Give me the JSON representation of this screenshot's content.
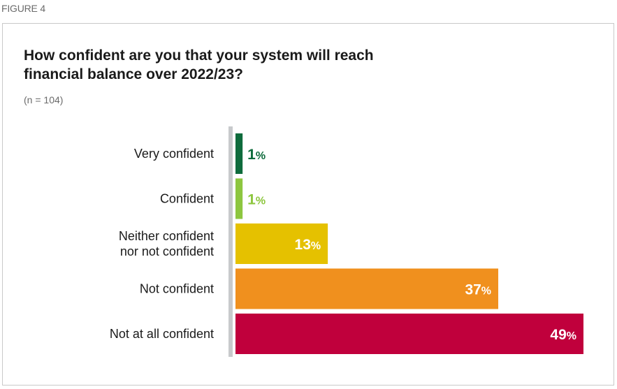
{
  "figure_label": "FIGURE 4",
  "chart_data": {
    "type": "bar",
    "orientation": "horizontal",
    "title": "How confident are you that your system will reach financial balance over 2022/23?",
    "subtitle": "(n = 104)",
    "xlabel": "",
    "ylabel": "",
    "xlim": [
      0,
      49
    ],
    "grid": false,
    "unit": "%",
    "categories": [
      [
        "Very confident"
      ],
      [
        "Confident"
      ],
      [
        "Neither confident",
        "nor not confident"
      ],
      [
        "Not confident"
      ],
      [
        "Not at all confident"
      ]
    ],
    "values": [
      1,
      1,
      13,
      37,
      49
    ],
    "colors": [
      "#0e6b3c",
      "#8dc63f",
      "#e5c100",
      "#f0901e",
      "#c0003c"
    ],
    "label_colors": [
      "#0e6b3c",
      "#8dc63f",
      "#ffffff",
      "#ffffff",
      "#ffffff"
    ],
    "axis_color": "#c8cacc"
  }
}
